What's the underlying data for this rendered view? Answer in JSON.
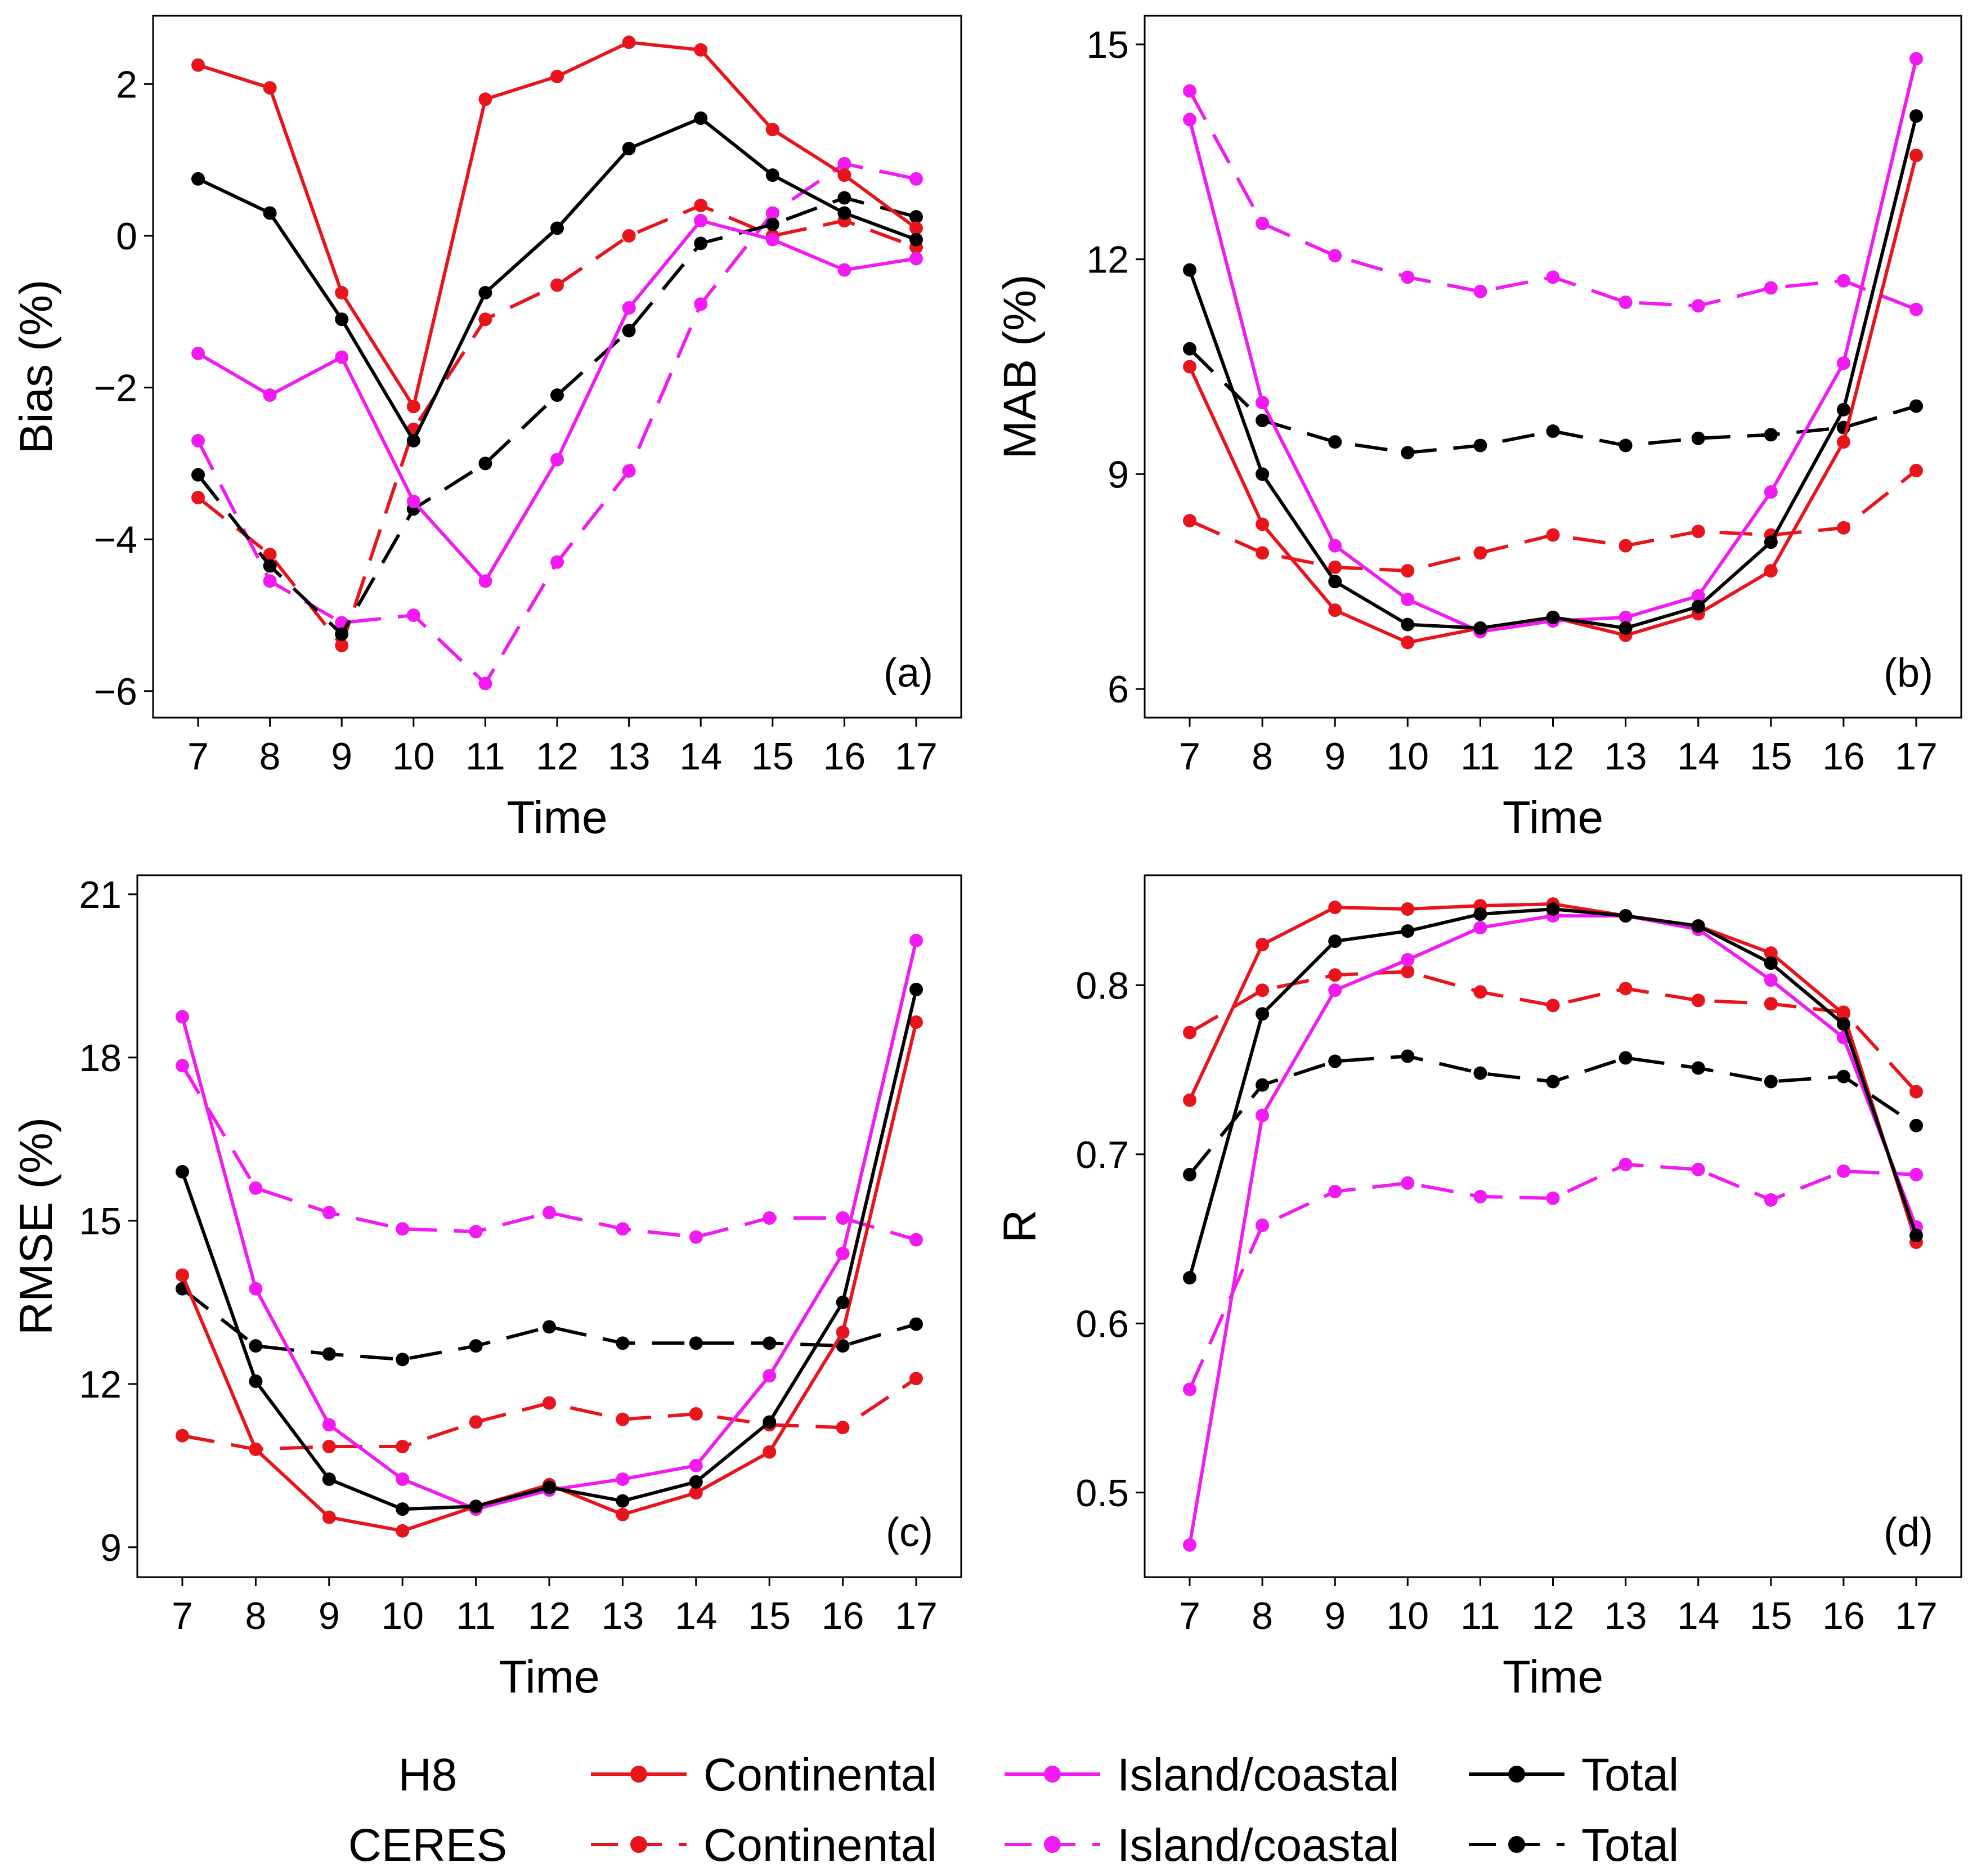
{
  "figure": {
    "x_label": "Time",
    "colors": {
      "continental": "#e8141c",
      "island": "#f21af2",
      "total": "#000000"
    }
  },
  "chart_data": [
    {
      "type": "line",
      "panel": "(a)",
      "ylabel": "Bias (%)",
      "xlabel": "Time",
      "x": [
        7,
        8,
        9,
        10,
        11,
        12,
        13,
        14,
        15,
        16,
        17
      ],
      "ylim": [
        -6.35,
        2.9
      ],
      "yticks": [
        2,
        0,
        -2,
        -4,
        -6
      ],
      "ytick_labels": [
        "2",
        "0",
        "−2",
        "−4",
        "−6"
      ],
      "series": [
        {
          "name": "H8 Continental",
          "group": "continental",
          "dash": "solid",
          "values": [
            2.25,
            1.95,
            -0.75,
            -2.25,
            1.8,
            2.1,
            2.55,
            2.45,
            1.4,
            0.8,
            0.1
          ]
        },
        {
          "name": "H8 Island/coastal",
          "group": "island",
          "dash": "solid",
          "values": [
            -1.55,
            -2.1,
            -1.6,
            -3.5,
            -4.55,
            -2.95,
            -0.95,
            0.2,
            -0.05,
            -0.45,
            -0.3
          ]
        },
        {
          "name": "H8 Total",
          "group": "total",
          "dash": "solid",
          "values": [
            0.75,
            0.3,
            -1.1,
            -2.7,
            -0.75,
            0.1,
            1.15,
            1.55,
            0.8,
            0.3,
            -0.05
          ]
        },
        {
          "name": "CERES Continental",
          "group": "continental",
          "dash": "dashed",
          "values": [
            -3.45,
            -4.2,
            -5.4,
            -2.55,
            -1.1,
            -0.65,
            0.0,
            0.4,
            0.0,
            0.2,
            -0.15
          ]
        },
        {
          "name": "CERES Island/coastal",
          "group": "island",
          "dash": "dashed",
          "values": [
            -2.7,
            -4.55,
            -5.1,
            -5.0,
            -5.9,
            -4.3,
            -3.1,
            -0.9,
            0.3,
            0.95,
            0.75
          ]
        },
        {
          "name": "CERES Total",
          "group": "total",
          "dash": "dashed",
          "values": [
            -3.15,
            -4.35,
            -5.25,
            -3.6,
            -3.0,
            -2.1,
            -1.25,
            -0.1,
            0.15,
            0.5,
            0.25
          ]
        }
      ]
    },
    {
      "type": "line",
      "panel": "(b)",
      "ylabel": "MAB (%)",
      "xlabel": "Time",
      "x": [
        7,
        8,
        9,
        10,
        11,
        12,
        13,
        14,
        15,
        16,
        17
      ],
      "ylim": [
        5.6,
        15.4
      ],
      "yticks": [
        15,
        12,
        9,
        6
      ],
      "ytick_labels": [
        "15",
        "12",
        "9",
        "6"
      ],
      "series": [
        {
          "name": "H8 Continental",
          "group": "continental",
          "dash": "solid",
          "values": [
            10.5,
            8.3,
            7.1,
            6.65,
            6.85,
            7.0,
            6.75,
            7.05,
            7.65,
            9.45,
            13.45
          ]
        },
        {
          "name": "H8 Island/coastal",
          "group": "island",
          "dash": "solid",
          "values": [
            13.95,
            10.0,
            8.0,
            7.25,
            6.8,
            6.95,
            7.0,
            7.3,
            8.75,
            10.55,
            14.8
          ]
        },
        {
          "name": "H8 Total",
          "group": "total",
          "dash": "solid",
          "values": [
            11.85,
            9.0,
            7.5,
            6.9,
            6.85,
            7.0,
            6.85,
            7.15,
            8.05,
            9.9,
            14.0
          ]
        },
        {
          "name": "CERES Continental",
          "group": "continental",
          "dash": "dashed",
          "values": [
            8.35,
            7.9,
            7.7,
            7.65,
            7.9,
            8.15,
            8.0,
            8.2,
            8.15,
            8.25,
            9.05
          ]
        },
        {
          "name": "CERES Island/coastal",
          "group": "island",
          "dash": "dashed",
          "values": [
            14.35,
            12.5,
            12.05,
            11.75,
            11.55,
            11.75,
            11.4,
            11.35,
            11.6,
            11.7,
            11.3
          ]
        },
        {
          "name": "CERES Total",
          "group": "total",
          "dash": "dashed",
          "values": [
            10.75,
            9.75,
            9.45,
            9.3,
            9.4,
            9.6,
            9.4,
            9.5,
            9.55,
            9.65,
            9.95
          ]
        }
      ]
    },
    {
      "type": "line",
      "panel": "(c)",
      "ylabel": "RMSE (%)",
      "xlabel": "Time",
      "x": [
        7,
        8,
        9,
        10,
        11,
        12,
        13,
        14,
        15,
        16,
        17
      ],
      "ylim": [
        8.45,
        21.35
      ],
      "yticks": [
        21,
        18,
        15,
        12,
        9
      ],
      "ytick_labels": [
        "21",
        "18",
        "15",
        "12",
        "9"
      ],
      "series": [
        {
          "name": "H8 Continental",
          "group": "continental",
          "dash": "solid",
          "values": [
            14.0,
            10.8,
            9.55,
            9.3,
            9.75,
            10.15,
            9.6,
            10.0,
            10.75,
            12.95,
            18.65
          ]
        },
        {
          "name": "H8 Island/coastal",
          "group": "island",
          "dash": "solid",
          "values": [
            18.75,
            13.75,
            11.25,
            10.25,
            9.7,
            10.05,
            10.25,
            10.5,
            12.15,
            14.4,
            20.15
          ]
        },
        {
          "name": "H8 Total",
          "group": "total",
          "dash": "solid",
          "values": [
            15.9,
            12.05,
            10.25,
            9.7,
            9.75,
            10.1,
            9.85,
            10.2,
            11.3,
            13.5,
            19.25
          ]
        },
        {
          "name": "CERES Continental",
          "group": "continental",
          "dash": "dashed",
          "values": [
            11.05,
            10.8,
            10.85,
            10.85,
            11.3,
            11.65,
            11.35,
            11.45,
            11.25,
            11.2,
            12.1
          ]
        },
        {
          "name": "CERES Island/coastal",
          "group": "island",
          "dash": "dashed",
          "values": [
            17.85,
            15.6,
            15.15,
            14.85,
            14.8,
            15.15,
            14.85,
            14.7,
            15.05,
            15.05,
            14.65
          ]
        },
        {
          "name": "CERES Total",
          "group": "total",
          "dash": "dashed",
          "values": [
            13.75,
            12.7,
            12.55,
            12.45,
            12.7,
            13.05,
            12.75,
            12.75,
            12.75,
            12.7,
            13.1
          ]
        }
      ]
    },
    {
      "type": "line",
      "panel": "(d)",
      "ylabel": "R",
      "xlabel": "Time",
      "x": [
        7,
        8,
        9,
        10,
        11,
        12,
        13,
        14,
        15,
        16,
        17
      ],
      "ylim": [
        0.45,
        0.865
      ],
      "yticks": [
        0.8,
        0.7,
        0.6,
        0.5
      ],
      "ytick_labels": [
        "0.8",
        "0.7",
        "0.6",
        "0.5"
      ],
      "series": [
        {
          "name": "H8 Continental",
          "group": "continental",
          "dash": "solid",
          "values": [
            0.732,
            0.824,
            0.846,
            0.845,
            0.847,
            0.848,
            0.841,
            0.835,
            0.819,
            0.783,
            0.648
          ]
        },
        {
          "name": "H8 Island/coastal",
          "group": "island",
          "dash": "solid",
          "values": [
            0.469,
            0.723,
            0.797,
            0.815,
            0.834,
            0.841,
            0.841,
            0.833,
            0.803,
            0.769,
            0.657
          ]
        },
        {
          "name": "H8 Total",
          "group": "total",
          "dash": "solid",
          "values": [
            0.627,
            0.783,
            0.826,
            0.832,
            0.842,
            0.845,
            0.841,
            0.835,
            0.813,
            0.777,
            0.652
          ]
        },
        {
          "name": "CERES Continental",
          "group": "continental",
          "dash": "dashed",
          "values": [
            0.772,
            0.797,
            0.806,
            0.808,
            0.796,
            0.788,
            0.798,
            0.791,
            0.789,
            0.784,
            0.737
          ]
        },
        {
          "name": "CERES Island/coastal",
          "group": "island",
          "dash": "dashed",
          "values": [
            0.561,
            0.658,
            0.678,
            0.683,
            0.675,
            0.674,
            0.694,
            0.691,
            0.673,
            0.69,
            0.688
          ]
        },
        {
          "name": "CERES Total",
          "group": "total",
          "dash": "dashed",
          "values": [
            0.688,
            0.741,
            0.755,
            0.758,
            0.748,
            0.743,
            0.757,
            0.751,
            0.743,
            0.746,
            0.717
          ]
        }
      ]
    }
  ],
  "legend": {
    "rows": [
      {
        "label": "H8",
        "dash": "solid",
        "entries": [
          {
            "group": "continental",
            "label": "Continental"
          },
          {
            "group": "island",
            "label": "Island/coastal"
          },
          {
            "group": "total",
            "label": "Total"
          }
        ]
      },
      {
        "label": "CERES",
        "dash": "dashed",
        "entries": [
          {
            "group": "continental",
            "label": "Continental"
          },
          {
            "group": "island",
            "label": "Island/coastal"
          },
          {
            "group": "total",
            "label": "Total"
          }
        ]
      }
    ]
  }
}
